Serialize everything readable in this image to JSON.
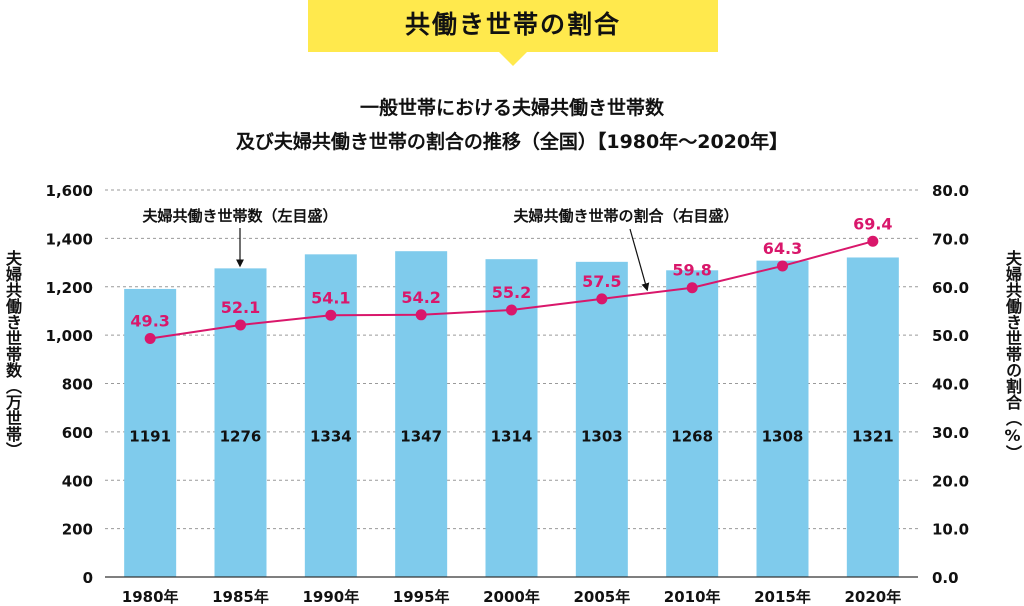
{
  "banner": {
    "text": "共働き世帯の割合"
  },
  "chart_data": {
    "type": "bar",
    "title": [
      "一般世帯における夫婦共働き世帯数",
      "及び夫婦共働き世帯の割合の推移（全国）【1980年〜2020年】"
    ],
    "categories": [
      "1980年",
      "1985年",
      "1990年",
      "1995年",
      "2000年",
      "2005年",
      "2010年",
      "2015年",
      "2020年"
    ],
    "series": [
      {
        "name": "夫婦共働き世帯数（左目盛）",
        "type": "bar",
        "axis": "left",
        "values": [
          1191,
          1276,
          1334,
          1347,
          1314,
          1303,
          1268,
          1308,
          1321
        ],
        "color": "#7fcbec"
      },
      {
        "name": "夫婦共働き世帯の割合（右目盛）",
        "type": "line",
        "axis": "right",
        "values": [
          49.3,
          52.1,
          54.1,
          54.2,
          55.2,
          57.5,
          59.8,
          64.3,
          69.4
        ],
        "color": "#d9176b"
      }
    ],
    "ylabel_left": "夫婦共働き世帯数（万世帯）",
    "ylabel_right": "夫婦共働き世帯の割合（%）",
    "ylim_left": [
      0,
      1600
    ],
    "ylim_right": [
      0,
      80
    ],
    "yticks_left": [
      "0",
      "200",
      "400",
      "600",
      "800",
      "1,000",
      "1,200",
      "1,400",
      "1,600"
    ],
    "yticks_right": [
      "0.0",
      "10.0",
      "20.0",
      "30.0",
      "40.0",
      "50.0",
      "60.0",
      "70.0",
      "80.0"
    ],
    "grid": true,
    "line_labels": [
      "49.3",
      "52.1",
      "54.1",
      "54.2",
      "55.2",
      "57.5",
      "59.8",
      "64.3",
      "69.4"
    ]
  }
}
